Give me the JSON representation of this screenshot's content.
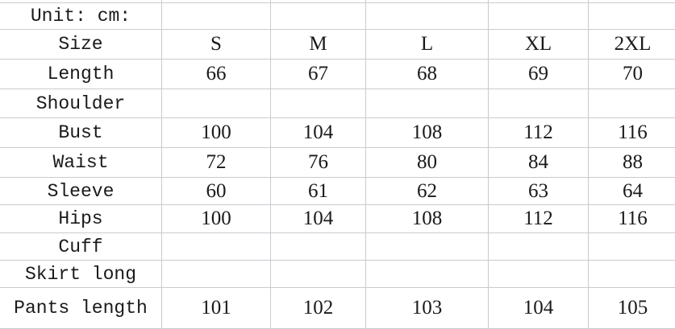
{
  "unit_label": "Unit: cm:",
  "header": {
    "label": "Size",
    "sizes": [
      "S",
      "M",
      "L",
      "XL",
      "2XL"
    ]
  },
  "rows": [
    {
      "label": "Length",
      "values": [
        "66",
        "67",
        "68",
        "69",
        "70"
      ]
    },
    {
      "label": "Shoulder",
      "values": [
        "",
        "",
        "",
        "",
        ""
      ]
    },
    {
      "label": "Bust",
      "values": [
        "100",
        "104",
        "108",
        "112",
        "116"
      ]
    },
    {
      "label": "Waist",
      "values": [
        "72",
        "76",
        "80",
        "84",
        "88"
      ]
    },
    {
      "label": "Sleeve",
      "values": [
        "60",
        "61",
        "62",
        "63",
        "64"
      ]
    },
    {
      "label": "Hips",
      "values": [
        "100",
        "104",
        "108",
        "112",
        "116"
      ]
    },
    {
      "label": "Cuff",
      "values": [
        "",
        "",
        "",
        "",
        ""
      ]
    },
    {
      "label": "Skirt long",
      "values": [
        "",
        "",
        "",
        "",
        ""
      ]
    },
    {
      "label": "Pants length",
      "values": [
        "101",
        "102",
        "103",
        "104",
        "105"
      ]
    }
  ]
}
